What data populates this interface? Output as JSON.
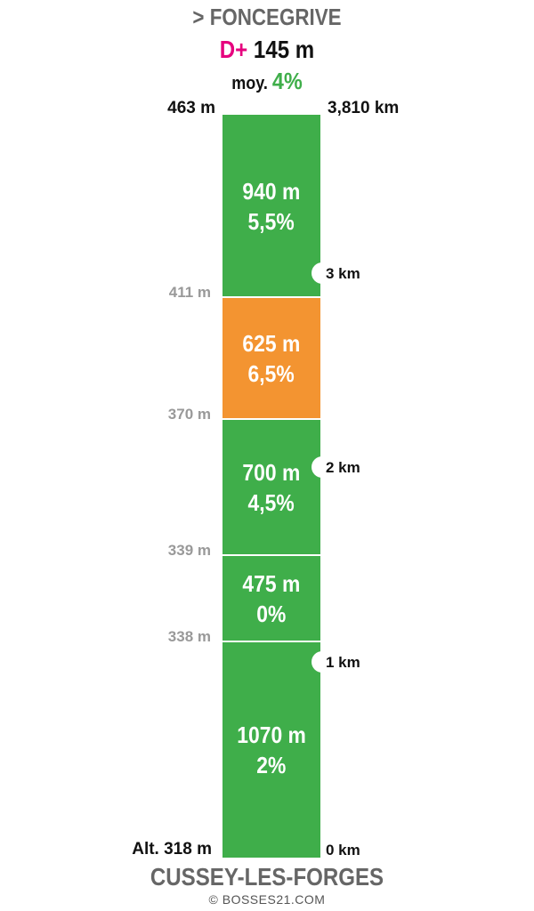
{
  "header": {
    "title": "> FONCEGRIVE",
    "dplus_label": "D+",
    "dplus_value": "145 m",
    "avg_label": "moy.",
    "avg_value": "4%"
  },
  "top": {
    "altitude": "463 m",
    "distance": "3,810 km"
  },
  "segments": [
    {
      "length": "940 m",
      "grade": "5,5%",
      "color": "#3fae4a"
    },
    {
      "length": "625 m",
      "grade": "6,5%",
      "color": "#f39431"
    },
    {
      "length": "700 m",
      "grade": "4,5%",
      "color": "#3fae4a"
    },
    {
      "length": "475 m",
      "grade": "0%",
      "color": "#3fae4a"
    },
    {
      "length": "1070 m",
      "grade": "2%",
      "color": "#3fae4a"
    }
  ],
  "altitude_marks": [
    "411 m",
    "370 m",
    "339 m",
    "338 m"
  ],
  "km_marks": [
    "3 km",
    "2 km",
    "1 km"
  ],
  "bottom": {
    "altitude": "Alt. 318 m",
    "distance": "0 km"
  },
  "footer": {
    "start_name": "CUSSEY-LES-FORGES",
    "credit": "© BOSSES21.COM"
  }
}
